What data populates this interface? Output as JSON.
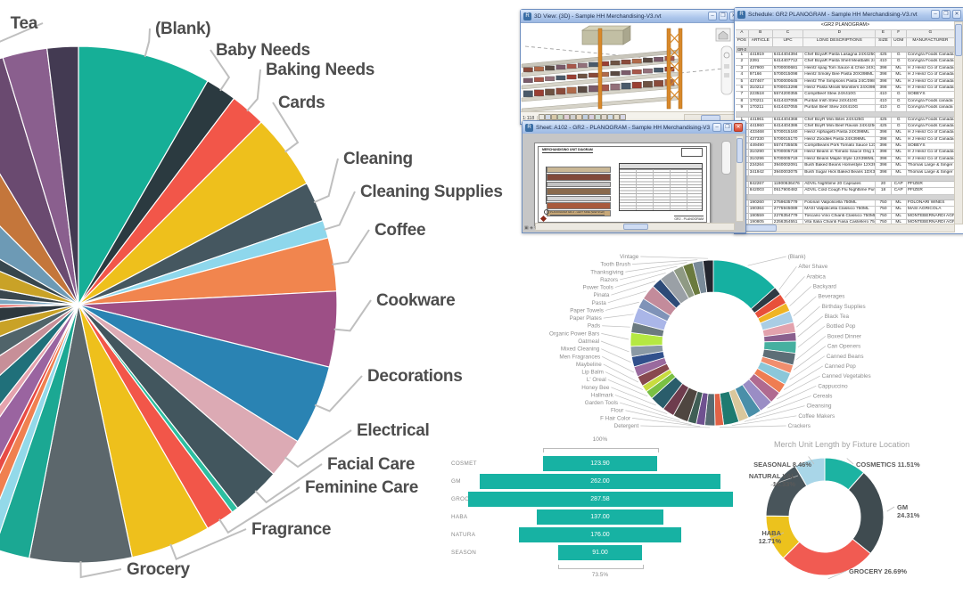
{
  "chart_data": [
    {
      "type": "pie",
      "name": "category-share-pie",
      "title": "",
      "legend_position": "callout-labels",
      "segments": [
        {
          "label": "(Blank)",
          "value": 30,
          "color": "#16af97"
        },
        {
          "label": "Baby Needs",
          "value": 7,
          "color": "#2b3a40"
        },
        {
          "label": "Baking Needs",
          "value": 8,
          "color": "#f25649"
        },
        {
          "label": "Cards",
          "value": 17,
          "color": "#eec01c"
        },
        {
          "label": "Cleaning",
          "value": 9,
          "color": "#455760"
        },
        {
          "label": "Cleaning Supplies",
          "value": 4,
          "color": "#8ed7ec"
        },
        {
          "label": "Coffee",
          "value": 12,
          "color": "#f1854e"
        },
        {
          "label": "Cookware",
          "value": 17,
          "color": "#9d4f86"
        },
        {
          "label": "Decorations",
          "value": 18,
          "color": "#2a83b3"
        },
        {
          "label": "Electrical",
          "value": 9,
          "color": "#dcaab4"
        },
        {
          "label": "Facial Care",
          "value": 11,
          "color": "#42565e"
        },
        {
          "label": "",
          "value": 1.5,
          "color": "#2dbfa0"
        },
        {
          "label": "Feminine Care",
          "value": 6.5,
          "color": "#f25649"
        },
        {
          "label": "Fragrance",
          "value": 18,
          "color": "#eec01c"
        },
        {
          "label": "Grocery",
          "value": 23,
          "color": "#5c676c"
        },
        {
          "label": "",
          "value": 8,
          "color": "#1ba893"
        },
        {
          "label": "",
          "value": 3,
          "color": "#93d9e9"
        },
        {
          "label": "",
          "value": 3,
          "color": "#f08050"
        },
        {
          "label": "",
          "value": 2,
          "color": "#e84b45"
        },
        {
          "label": "",
          "value": 8,
          "color": "#9a64a0"
        },
        {
          "label": "",
          "value": 3,
          "color": "#e5a3ae"
        },
        {
          "label": "",
          "value": 10,
          "color": "#20707a"
        },
        {
          "label": "",
          "value": 9,
          "color": "#c78f98"
        },
        {
          "label": "",
          "value": 11,
          "color": "#50646a"
        },
        {
          "label": "",
          "value": 10,
          "color": "#c9a227"
        },
        {
          "label": "",
          "value": 10,
          "color": "#2d383e"
        },
        {
          "label": "",
          "value": 2,
          "color": "#e84b45"
        },
        {
          "label": "",
          "value": 4,
          "color": "#7ca7c0"
        },
        {
          "label": "",
          "value": 7,
          "color": "#3a474e"
        },
        {
          "label": "",
          "value": 12,
          "color": "#c9a227"
        },
        {
          "label": "",
          "value": 7,
          "color": "#37464d"
        },
        {
          "label": "",
          "value": 15,
          "color": "#6d9ab5"
        },
        {
          "label": "",
          "value": 14,
          "color": "#c4763b"
        },
        {
          "label": "Tea",
          "value": 14,
          "color": "#6a4a70"
        },
        {
          "label": "",
          "value": 10,
          "color": "#8a5f8e"
        },
        {
          "label": "",
          "value": 7,
          "color": "#433a52"
        }
      ]
    },
    {
      "type": "donut",
      "name": "subcategory-donut",
      "title": "",
      "legend_position": "radial-labels",
      "segments": [
        {
          "label": "(Blank)",
          "value": 40,
          "color": "#15b0a1"
        },
        {
          "label": "After Shave",
          "value": 5,
          "color": "#2e3a44"
        },
        {
          "label": "Arabica",
          "value": 6,
          "color": "#e8503a"
        },
        {
          "label": "Backyard",
          "value": 5,
          "color": "#f0b423"
        },
        {
          "label": "Beverages",
          "value": 7,
          "color": "#a9cde4"
        },
        {
          "label": "Birthday Supplies",
          "value": 6,
          "color": "#e2a2ad"
        },
        {
          "label": "Black Tea",
          "value": 5,
          "color": "#8a5f8e"
        },
        {
          "label": "Bottled Pop",
          "value": 7,
          "color": "#46b0a0"
        },
        {
          "label": "Boxed Dinner",
          "value": 7,
          "color": "#5d6e77"
        },
        {
          "label": "Can Openers",
          "value": 5,
          "color": "#f08e6e"
        },
        {
          "label": "Canned Beans",
          "value": 7,
          "color": "#8bc7d9"
        },
        {
          "label": "Canned Pop",
          "value": 6,
          "color": "#ef7d52"
        },
        {
          "label": "Canned Vegetables",
          "value": 7,
          "color": "#b06a90"
        },
        {
          "label": "Cappuccino",
          "value": 8,
          "color": "#9a8dc5"
        },
        {
          "label": "Cereals",
          "value": 8,
          "color": "#4a8fa9"
        },
        {
          "label": "Cleansing",
          "value": 6,
          "color": "#d9c79c"
        },
        {
          "label": "Coffee Makers",
          "value": 9,
          "color": "#1e7a70"
        },
        {
          "label": "Crackers",
          "value": 5,
          "color": "#e06246"
        },
        {
          "label": "Detergent",
          "value": 6,
          "color": "#566b72"
        },
        {
          "label": "F Hair Color",
          "value": 5,
          "color": "#6f5190"
        },
        {
          "label": "Flour",
          "value": 5,
          "color": "#3f5e55"
        },
        {
          "label": "Garden Tools",
          "value": 9,
          "color": "#4f4640"
        },
        {
          "label": "Hallmark",
          "value": 7,
          "color": "#6e3c4d"
        },
        {
          "label": "Honey Bee",
          "value": 9,
          "color": "#2a5d6b"
        },
        {
          "label": "L' Oreal",
          "value": 5,
          "color": "#7ac043"
        },
        {
          "label": "Lip Balm",
          "value": 4,
          "color": "#c8dc3f"
        },
        {
          "label": "Maybeline",
          "value": 6,
          "color": "#88494f"
        },
        {
          "label": "Men Fragrances",
          "value": 6,
          "color": "#9a6a9e"
        },
        {
          "label": "Mixed Cleaning",
          "value": 6,
          "color": "#31508c"
        },
        {
          "label": "Oatmeal",
          "value": 6,
          "color": "#8a99a5"
        },
        {
          "label": "Organic Power Bars",
          "value": 8,
          "color": "#b5e842"
        },
        {
          "label": "Pads",
          "value": 6,
          "color": "#6b7a80"
        },
        {
          "label": "Paper Plates",
          "value": 9,
          "color": "#aab6e8"
        },
        {
          "label": "Paper Towels",
          "value": 6,
          "color": "#7f93b8"
        },
        {
          "label": "Pasta",
          "value": 9,
          "color": "#c38b9b"
        },
        {
          "label": "Pinata",
          "value": 6,
          "color": "#2d4a77"
        },
        {
          "label": "Power Tools",
          "value": 9,
          "color": "#9aa0a6"
        },
        {
          "label": "Razors",
          "value": 6,
          "color": "#8f9a84"
        },
        {
          "label": "Thanksgiving",
          "value": 6,
          "color": "#6b7a3e"
        },
        {
          "label": "Tooth Brush",
          "value": 6,
          "color": "#7a8b99"
        },
        {
          "label": "Vintage",
          "value": 6,
          "color": "#23262e"
        }
      ]
    },
    {
      "type": "bar",
      "name": "merch-length-bars",
      "orientation": "horizontal-centered",
      "categories": [
        "COSMET",
        "GM",
        "GROCER",
        "HABA",
        "NATURA",
        "SEASON"
      ],
      "values": [
        123.9,
        262.0,
        287.58,
        137.0,
        176.0,
        91.0
      ],
      "value_labels": [
        "123.90",
        "262.00",
        "287.58",
        "137.00",
        "176.00",
        "91.00"
      ],
      "top_bracket_label": "100%",
      "bottom_bracket_label": "73.5%",
      "bar_color": "#17b2a3"
    },
    {
      "type": "donut",
      "name": "fixture-location-donut",
      "title": "Merch Unit Length by Fixture Location",
      "segments": [
        {
          "label": "COSMETICS",
          "pct": "11.51%",
          "value": 11.51,
          "color": "#1cb3a2"
        },
        {
          "label": "GM",
          "pct": "24.31%",
          "value": 24.31,
          "color": "#3f4b50"
        },
        {
          "label": "GROCERY",
          "pct": "26.69%",
          "value": 26.69,
          "color": "#f15b52"
        },
        {
          "label": "HABA",
          "pct": "12.71%",
          "value": 12.71,
          "color": "#ecc21d"
        },
        {
          "label": "NATURAL VAL",
          "pct": "16.33%",
          "value": 16.33,
          "color": "#49555b"
        },
        {
          "label": "SEASONAL",
          "pct": "8.46%",
          "value": 8.46,
          "color": "#a9d6e8"
        }
      ]
    }
  ],
  "windows": {
    "view3d": {
      "title": "3D View: {3D} - Sample HH Merchandising-V3.rvt",
      "scale": "1:118"
    },
    "sheet": {
      "title": "Sheet: A102 - GR2 - PLANOGRAM - Sample HH Merchandising-V3.rvt",
      "sheet_header": "MERCHANDISING UNIT DIAGRAM",
      "note": "PLANOGRAM GR-2 - LEFT SIDE (Wall Shelf)",
      "titleblock": "GR2 - PLANOGRAM"
    },
    "schedule": {
      "title": "Schedule: GR2 PLANOGRAM - Sample HH Merchandising-V3.rvt",
      "table_title": "<GR2 PLANOGRAM>",
      "col_letters": [
        "A",
        "B",
        "C",
        "D",
        "E",
        "F",
        "G"
      ],
      "headers": [
        "POS",
        "ARTICLE",
        "UPC",
        "LONG DESCRIPTIONS",
        "SIZE",
        "UOM",
        "MANUFACTURER"
      ],
      "sections": [
        {
          "label": "GR-2",
          "rows": [
            [
              "1",
              "441919",
              "6414404394",
              "Chef BoyaR Pasta Lasagna 24X425G",
              "425",
              "G",
              "ConAgra Foods Canada Ltd"
            ],
            [
              "2",
              "2391",
              "6414407712",
              "Chef BoyaR Pasta Shell Meatballs 24M",
              "410",
              "G",
              "ConAgra Foods Canada Ltd"
            ],
            [
              "3",
              "437900",
              "5700000681",
              "Heintz spag Tom Sauce & Chse 24X398",
              "398",
              "ML",
              "H J Heinz Co of Canada Ltd"
            ],
            [
              "4",
              "97166",
              "5700015098",
              "Heintz Smoky Bee Pasta 20X398ML",
              "398",
              "ML",
              "H J Heinz Co of Canada Ltd"
            ],
            [
              "5",
              "437467",
              "5700000645",
              "Heintz The Simpsons Pasta 24C/398ML",
              "398",
              "ML",
              "H J Heinz Co of Canada Ltd"
            ],
            [
              "6",
              "310212",
              "5700013298",
              "Heinz Pasta Meals Monsters 24X398ML",
              "398",
              "ML",
              "H J Heinz Co of Canada Ltd"
            ],
            [
              "7",
              "223518",
              "5574200355",
              "Comp/Beef Stew 24X410G",
              "410",
              "G",
              "SOBEYS"
            ],
            [
              "8",
              "170211",
              "6414437055",
              "Puritan Irish Stew 24X410G",
              "410",
              "G",
              "ConAgra Foods canada Ltd"
            ],
            [
              "9",
              "170211",
              "6414437055",
              "Puritan Beef Stew 24X410G",
              "410",
              "G",
              "ConAgra Foods canada Ltd"
            ]
          ]
        },
        {
          "label": "",
          "rows": [
            [
              "1",
              "441961",
              "6414404368",
              "Chef BoyR Mini Bites 24X425G",
              "425",
              "G",
              "ConAgra Foods Canada Ltd"
            ],
            [
              "2",
              "441960",
              "6414404386",
              "Chef BoyR Mini Beef Ravioli 24X425G",
              "425",
              "G",
              "ConAgra Foods Canada Ltd"
            ],
            [
              "3",
              "433468",
              "5700015160",
              "Heinz Alphagetti Pasta 24X398ML",
              "398",
              "ML",
              "H J Heinz Co of Canada Ltd"
            ],
            [
              "4",
              "437330",
              "5700015170",
              "Heinz Zoodles Pasta 24X398ML",
              "398",
              "ML",
              "H J Heinz Co of Canada Ltd"
            ],
            [
              "5",
              "449490",
              "5574735505",
              "Comp/Beans Pork Tomato Sauce 12X39",
              "398",
              "ML",
              "SOBEYS"
            ],
            [
              "6",
              "310290",
              "5700005718",
              "Heinz Beans in Tomato Sauce Orig 123.",
              "398",
              "ML",
              "H J Heinz Co of Canada Ltd"
            ],
            [
              "7",
              "310296",
              "5700005719",
              "Heinz Beans Maple Style 12X398ML",
              "398",
              "ML",
              "H J Heinz Co of Canada Ltd"
            ],
            [
              "8",
              "234264",
              "3940002091",
              "Bush Baked Beans Homestyle 12X398M",
              "398",
              "ML",
              "Thomas Large & Singer"
            ],
            [
              "9",
              "341942",
              "3940003075",
              "Bush Sugar Hick Baked Beans 1DX398",
              "398",
              "ML",
              "Thomas Large & Singer"
            ]
          ]
        },
        {
          "label": "",
          "rows": [
            [
              "1",
              "842267",
              "11900636476",
              "ADVIL Nighttime 20 Capsules",
              "20",
              "CAP",
              "PFIZER"
            ],
            [
              "2",
              "842003",
              "0517900482",
              "ADVIL Cold Cough Flu Nighttime Purpul",
              "18",
              "CAP",
              "PFIZER"
            ]
          ]
        },
        {
          "label": "",
          "rows": [
            [
              "1",
              "190260",
              "2759635779",
              "Folonari Valpolicella 750ML",
              "750",
              "ML",
              "FOLONARI WINES"
            ],
            [
              "2",
              "190364",
              "2775945089",
              "MASI Valpolicella Classico 750ML",
              "750",
              "ML",
              "MASI AGRICOLA"
            ],
            [
              "3",
              "190559",
              "2276354779",
              "Toscano Vino Chianti Classico 750ML",
              "750",
              "ML",
              "MONTEBERNARDI AGRIC"
            ],
            [
              "4",
              "190805",
              "2256354551",
              "Vita Italia Chianti Fiasa Castellero 750M",
              "750",
              "ML",
              "MONTEBERNARDI AGRIC"
            ],
            [
              "5",
              "390260",
              "6500034488",
              "Molson Canadian 24PK",
              "24",
              "B",
              "Molson Coors"
            ],
            [
              "6",
              "390205",
              "6500030555",
              "Sleeman Honey Brown 12PK",
              "12",
              "B",
              "Sleeman Breweries"
            ]
          ]
        }
      ]
    }
  }
}
